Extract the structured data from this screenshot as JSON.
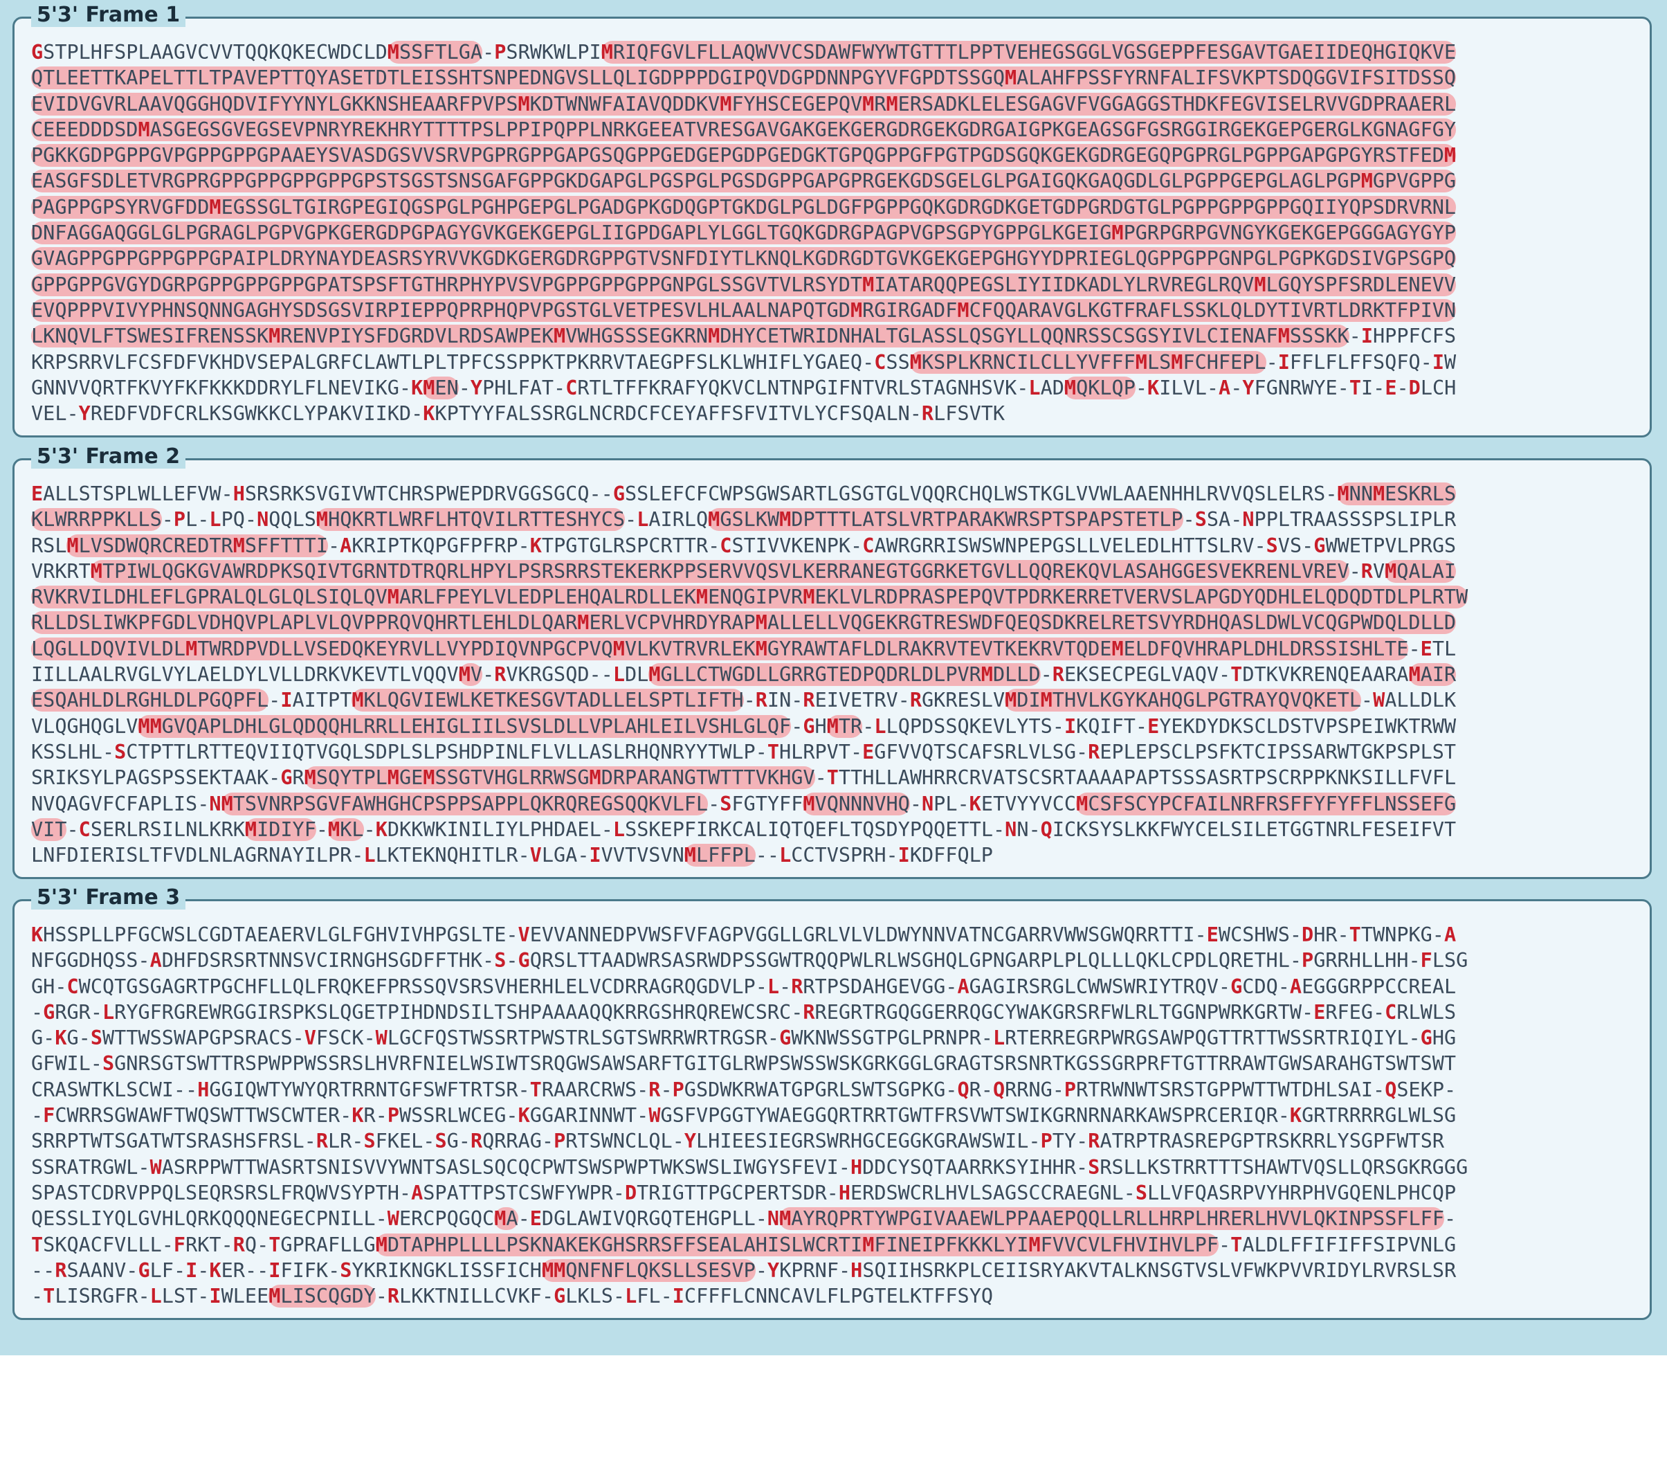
{
  "colors": {
    "background": "#bcdfe9",
    "panel": "#eef6fa",
    "orf_highlight": "#f3b3b8",
    "start_stop_residue": "#c81e2a",
    "text": "#3a4a5a"
  },
  "frames": [
    {
      "title": "5'3' Frame 1",
      "lines": [
        "GSTPLHFSPLAAGVCVVTQQKQKECWDCLDMSSFTLGA-PSRWKWLPIMRIQFGVLFLLAQWVVCSDAWFWYWTGTTTLPPTVEHEGSGGLVGSGEPPFESGAVTGAEIIDEQHGIQKVE",
        "QTLEETTKAPELTTLTPAVEPTTQYASETDTLEISSHTSNPEDNGVSLLQLIGDPPPDGIPQVDGPDNNPGYVFGPDTSSGQMALAHFPSSFYRNFALIFSVKPTSDQGGVIFSITDSSQ",
        "EVIDVGVRLAAVQGGHQDVIFYYNYLGKKNSHEAARFPVPSMKDTWNWFAIAVQDDKVMFYHSCEGEPQVMRMERSADKLELESGAGVFVGGAGGSTHDKFEGVISELRVVGDPRAAERL",
        "CEEEDDDSDMASGEGSGVEGSEVPNRYREKHRYTTTTPSLPPIPQPPLNRKGEEATVRESGAVGAKGEKGERGDRGEKGDRGAIGPKGEAGSGFGSRGGIRGEKGEPGERGLKGNAGFGY",
        "PGKKGDPGPPGVPGPPGPPGPAAEYSVASDGSVVSRVPGPRGPPGAPGSQGPPGEDGEPGDPGEDGKTGPQGPPGFPGTPGDSGQKGEKGDRGEGQPGPRGLPGPPGAPGPGYRSTFEDM",
        "EASGFSDLETVRGPRGPPGPPGPPGPPGPSTSGSTSNSGAFGPPGKDGAPGLPGSPGLPGSDGPPGAPGPRGEKGDSGELGLPGAIGQKGAQGDLGLPGPPGEPGLAGLPGPMGPVGPPG",
        "PAGPPGPSYRVGFDDMEGSSGLTGIRGPEGIQGSPGLPGHPGEPGLPGADGPKGDQGPTGKDGLPGLDGFPGPPGQKGDRGDKGETGDPGRDGTGLPGPPGPPGPPGQIIYQPSDRVRNL",
        "DNFAGGAQGGLGLPGRAGLPGPVGPKGERGDPGPAGYGVKGEKGEPGLIIGPDGAPLYLGGLTGQKGDRGPAGPVGPSGPYGPPGLKGEIGMPGRPGRPGVNGYKGEKGEPGGGAGYGYP",
        "GVAGPPGPPGPPGPPGPAIPLDRYNAYDEASRSYRVVKGDKGERGDRGPPGTVSNFDIYTLKNQLKGDRGDTGVKGEKGEPGHGYYDPRIEGLQGPPGPPGNPGLPGPKGDSIVGPSGPQ",
        "GPPGPPGVGYDGRPGPPGPPGPPGPATSPSFTGTHRPHYPVSVPGPPGPPGPPGNPGLSSGVTVLRSYDTMIATARQQPEGSLIYIIDKADLYLRVREGLRQVMLGQYSPFSRDLENEVV",
        "EVQPPPVIVYPHNSQNNGAGHYSDSGSVIRPIEPPQPRPHQPVPGSTGLVETPESVLHLAALNAPQTGDMRGIRGADFMCFQQARAVGLKGTFRAFLSSKLQLDYTIVRTLDRKTFPIVN",
        "LKNQVLFTSWESIFRENSSKMRENVPIYSFDGRDVLRDSAWPEKMVWHGSSSEGKRNMDHYCETWRIDNHALTGLASSLQSGYLLQQNRSSCSGSYIVLCIENAFMSSSKK-IHPPFCFS",
        "KRPSRRVLFCSFDFVKHDVSEPALGRFCLAWTLPLTPFCSSPPKTPKRRVTAEGPFSLKLWHIFLYGAEQ-CSSMKSPLKRNCILCLLYVFFFMLSMFCHFEPL-IFFLFLFFSQFQ-IW",
        "GNNVVQRTFKVYFKFKKKDDRYLFLNEVIKG-KMEN-YPHLFAT-CRTLTFFKRAFYQKVCLNTNPGIFNTVRLSTAGNHSVK-LADMQKLQP-KILVL-A-YFGNRWYE-TI-E-DLCH",
        "VEL-YREDFVDFCRLKSGWKKCLYPAKVIIKD-KKPTYYFALSSRGLNCRDCFCEYAFFSFVITVLYCFSQALN-RLFSVTK"
      ]
    },
    {
      "title": "5'3' Frame 2",
      "lines": [
        "EALLSTSPLWLLEFVW-HSRSRKSVGIVWTCHRSPWEPDRVGGSGCQ--GSSLEFCFCWPSGWSARTLGSGTGLVQQRCHQLWSTKGLVVWLAAENHHLRVVQSLELRS-MNNMESKRLS",
        "KLWRRPPKLLS-PL-LPQ-NQQLSMHQKRTLWRFLHTQVILRTTESHYCS-LAIRLQMGSLKWMDPTTTLATSLVRTPARAKWRSPTSPAPSTETLP-SSA-NPPLTRAASSSPSLIPLR",
        "RSLMLVSDWQRCREDTRMSFFTTTI-AKRIPTKQPGFPFRP-KTPGTGLRSPCRTTR-CSTIVVKENPK-CAWRGRRISWSWNPEPGSLLVELEDLHTTSLRV-SVS-GWWETPVLPRGS",
        "VRKRTMTPIWLQGKGVAWRDPKSQIVTGRNTDTRQRLHPYLPSRSRRSTEKERKPPSERVVQSVLKERRANEGTGGRKETGVLLQQREKQVLASAHGGESVEKRENLVREV-RVMQALAI",
        "RVKRVILDHLEFLGPRALQLGLQLSIQLQVMARLFPEYLVLEDPLEHQALRDLLEKMENQGIPVRMEKLVLRDPRASPEPQVTPDRKERRETVERVSLAPGDYQDHLELQDQDTDLPLRTW",
        "RLLDSLIWKPFGDLVDHQVPLAPLVLQVPPRQVQHRTLEHLDLQARMERLVCPVHRDYRAPMALLELLVQGEKRGTRESWDFQEQSDKRELRETSVYRDHQASLDWLVCQGPWDQLDLLD",
        "LQGLLDQVIVLDLMTWRDPVDLLVSEDQKEYRVLLVYPDIQVNPGCPVQMVLKVTRVRLEKMGYRAWTAFLDLRAKRVTEVTKEKRVTQDEMELDFQVHRAPLDHLDRSSISHLTE-ETL",
        "IILLAALRVGLVYLAELDYLVLLDRKVKEVTLVQQVMV-RVKRGSQD--LDLMGLLCTWGDLLGRRGTEDPQDRLDLPVRMDLLD-REKSECPEGLVAQV-TDTKVKRENQEAARAMAIR",
        "ESQAHLDLRGHLDLPGQPFL-IAITPTMKLQGVIEWLKETKESGVTADLLELSPTLIFTH-RIN-REIVETRV-RGKRESLVMDIMTHVLKGYKAHQGLPGTRAYQVQKETL-WALLDLK",
        "VLQGHQGLVMMGVQAPLDHLGLQDQQHLRRLLEHIGLIILSVSLDLLVPLAHLEILVSHLGLQF-GHMTR-LLQPDSSQKEVLYTS-IKQIFT-EYEKDYDKSCLDSTVPSPEIWKTRWW",
        "KSSLHL-SCTPTTLRTTEQVIIQTVGQLSDPLSLPSHDPINLFLVLLASLRHQNRYYTWLP-THLRPVT-EGFVVQTSCAFSRLVLSG-REPLEPSCLPSFKTCIPSSARWTGKPSPLST",
        "SRIKSYLPAGSPSSEKTAAK-GRMSQYTPLMGEMSSGTVHGLRRWSGMDRPARANGTWTTTVKHGV-TTTHLLAWHRRCRVATSCSRTAAAAPAPTSSSASRTPSCRPPKNKSILLFVFL",
        "NVQAGVFCFAPLIS-NMTSVNRPSGVFAWHGHCPSPPSAPPLQKRQREGSQQKVLFL-SFGTYFFMVQNNNVHQ-NPL-KETVYYVCCMCSFSCYPCFAILNRFRSFFYFYFFLNSSEFG",
        "VIT-CSERLRSILNLKRKMIDIYF-MKL-KDKKWKINILIYLPHDAEL-LSSKEPFIRKCALIQTQEFLTQSDYPQQETTL-NN-QICKSYSLKKFWYCELSILETGGTNRLFESEIFVT",
        "LNFDIERISLTFVDLNLAGRNAYILPR-LLKTEKNQHITLR-VLGA-IVVTVSVNMLFFPL--LCCTVSPRH-IKDFFQLP"
      ]
    },
    {
      "title": "5'3' Frame 3",
      "lines": [
        "KHSSPLLPFGCWSLCGDTAEAERVLGLFGHVIVHPGSLTE-VEVVANNEDPVWSFVFAGPVGGLLGRLVLVLDWYNNVATNCGARRVWWSGWQRRTTI-EWCSHWS-DHR-TTWNPKG-A",
        "NFGGDHQSS-ADHFDSRSRTNNSVCIRNGHSGDFFTHK-S-GQRSLTTAADWRSASRWDPSSGWTRQQPWLRLWSGHQLGPNGARPLPLQLLLQKLCPDLQRETHL-PGRRHLLHH-FLSG",
        "GH-CWCQTGSGAGRTPGCHFLLQLFRQKEFPRSSQVSRSVHERHLELVCDRRAGRQGDVLP-L-RRTPSDAHGEVGG-AGAGIRSRGLCWWSWRIYTRQV-GCDQ-AEGGGRPPCCREAL",
        "-GRGR-LRYGFRGREWRGGIRSPKSLQGETPIHDNDSILTSHPAAAAQQKRRGSHRQREWCSRC-RREGRTRGQGGERRQGCYWAKGRSRFWLRLTGGNPWRKGRTW-ERFEG-CRLWLS",
        "G-KG-SWTTWSSWAPGPSRACS-VFSCK-WLGCFQSTWSSRTPWSTRLSGTSWRRWRTRGSR-GWKNWSSGTPGLPRNPR-LRTERREGRPWRGSAWPQGTTRTTWSSRTRIQIYL-GHG",
        "GFWIL-SGNRSGTSWTTRSPWPPWSSRSLHVRFNIELWSIWTSRQGWSAWSARFTGITGLRWPSWSSWSKGRKGGLGRAGTSRSNRTKGSSGRPRFTGTTRRAWTGWSARAHGTSWTSWT",
        "CRASWTKLSCWI--HGGIQWTYWYQRTRRNTGFSWFTRTSR-TRAARCRWS-R-PGSDWKRWATGPGRLSWTSGPKG-QR-QRRNG-PRTRWNWTSRSTGPPWTTWTDHLSAI-QSEKP-",
        "-FCWRRSGWAWFTWQSWTTWSCWTER-KR-PWSSRLWCEG-KGGARINNWT-WGSFVPGGTYWAEGGQRTRRTGWTFRSVWTSWIKGRNRNARKAWSPRCERIQR-KGRTRRRRGLWLSG",
        "SRRPTWTSGATWTSRASHSFRSL-RLR-SFKEL-SG-RQRRAG-PRTSWNCLQL-YLHIEESIEGRSWRHGCEGGKGRAWSWIL-PTY-RATRPTRASREPGPTRSKRRLYSGPFWTSR",
        "SSRATRGWL-WASRPPWTTWASRTSNISVVYWNTSASLSQCQCPWTSWSPWPTWKSWSLIWGYSFEVI-HDDCYSQTAARRKSYIHHR-SRSLLKSTRRTTTSHAWTVQSLLQRSGKRGGG",
        "SPASTCDRVPPQLSEQRSRSLFRQWVSYPTH-ASPATTPSTCSWFYWPR-DTRIGTTPGCPERTSDR-HERDSWCRLHVLSAGSCCRAEGNL-SLLVFQASRPVYHRPHVGQENLPHCQP",
        "QESSLIYQLGVHLQRKQQQNEGECPNILL-WERCPQGQCMA-EDGLAWIVQRGQTEHGPLL-NMAYRQPRTYWPGIVAAEWLPPAAEPQQLLRLLHRPLHRERLHVVLQKINPSSFLFF-",
        "TSKQACFVLLL-FRKT-RQ-TGPRAFLLGMDTAPHPLLLLPSKNAKEKGHSRRSFFSEALAHISLWCRTIMFINEIPFKKKLYIMFVVCVLFHVIHVLPF-TALDLFFIFIFFSIPVNLG",
        "--RSAANV-GLF-I-KER--IFIFK-SYKRIKNGKLISSFICHMMQNFNFLQKSLLSESVP-YKPRNF-HSQIIHSRKPLCEIISRYAKVTALKNSGTVSLVFWKPVVRIDYLRVRSLSR",
        "-TLISRGFR-LLST-IWLEEMLISCQGDY-RLKKTNILLCVKF-GLKLS-LFL-ICFFFLCNNCAVLFLPGTELKTFFSYQ"
      ]
    }
  ]
}
